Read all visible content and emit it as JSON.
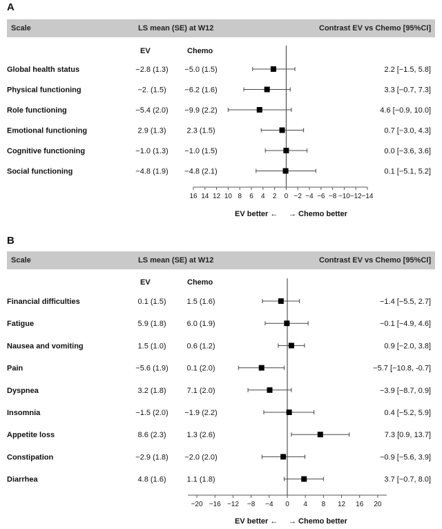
{
  "colors": {
    "header_bg": "#c9c9c9",
    "marker": "#000000",
    "axis": "#555555"
  },
  "chart_data": [
    {
      "type": "forest",
      "panel": "A",
      "header": {
        "scale": "Scale",
        "lsmean": "LS mean (SE) at W12",
        "contrast": "Contrast EV vs Chemo [95%CI]"
      },
      "col_ev": "EV",
      "col_chemo": "Chemo",
      "xlim": [
        16,
        -14
      ],
      "ticks": [
        16,
        14,
        12,
        10,
        8,
        6,
        4,
        2,
        0,
        -2,
        -4,
        -6,
        -8,
        -10,
        -12,
        -14
      ],
      "tick_labels": [
        "16",
        "14",
        "12",
        "10",
        "8",
        "6",
        "4",
        "2",
        "0",
        "−2",
        "−4",
        "−6",
        "−8",
        "−10",
        "−12",
        "−14"
      ],
      "left_label": "EV better ←",
      "right_label": "→ Chemo better",
      "rows": [
        {
          "name": "Global health status",
          "ev": "−2.8 (1.3)",
          "chemo": "−5.0 (1.5)",
          "contrast": "2.2 [−1.5, 5.8]",
          "est": 2.2,
          "lo": -1.5,
          "hi": 5.8
        },
        {
          "name": "Physical functioning",
          "ev": "−2. (1.5)",
          "chemo": "−6.2 (1.6)",
          "contrast": "3.3 [−0.7, 7.3]",
          "est": 3.3,
          "lo": -0.7,
          "hi": 7.3
        },
        {
          "name": "Role functioning",
          "ev": "−5.4 (2.0)",
          "chemo": "−9.9 (2.2)",
          "contrast": "4.6 [−0.9, 10.0]",
          "est": 4.6,
          "lo": -0.9,
          "hi": 10.0
        },
        {
          "name": "Emotional functioning",
          "ev": "2.9 (1.3)",
          "chemo": "2.3 (1.5)",
          "contrast": "0.7 [−3.0, 4.3]",
          "est": 0.7,
          "lo": -3.0,
          "hi": 4.3
        },
        {
          "name": "Cognitive functioning",
          "ev": "−1.0 (1.3)",
          "chemo": "−1.0 (1.5)",
          "contrast": "0.0 [−3.6, 3.6]",
          "est": 0.0,
          "lo": -3.6,
          "hi": 3.6
        },
        {
          "name": "Social functioning",
          "ev": "−4.8 (1.9)",
          "chemo": "−4.8 (2.1)",
          "contrast": "0.1 [−5.1, 5.2]",
          "est": 0.1,
          "lo": -5.1,
          "hi": 5.2
        }
      ]
    },
    {
      "type": "forest",
      "panel": "B",
      "header": {
        "scale": "Scale",
        "lsmean": "LS mean (SE) at W12",
        "contrast": "Contrast EV vs Chemo [95%CI]"
      },
      "col_ev": "EV",
      "col_chemo": "Chemo",
      "xlim": [
        -22,
        22
      ],
      "ticks": [
        -20,
        -16,
        -12,
        -8,
        -4,
        0,
        4,
        8,
        12,
        16,
        20
      ],
      "tick_labels": [
        "−20",
        "−16",
        "−12",
        "−8",
        "−4",
        "0",
        "4",
        "8",
        "12",
        "16",
        "20"
      ],
      "left_label": "EV better ←",
      "right_label": "→ Chemo better",
      "rows": [
        {
          "name": "Financial difficulties",
          "ev": "0.1 (1.5)",
          "chemo": "1.5 (1.6)",
          "contrast": "−1.4 [−5.5, 2.7]",
          "est": -1.4,
          "lo": -5.5,
          "hi": 2.7
        },
        {
          "name": "Fatigue",
          "ev": "5.9 (1.8)",
          "chemo": "6.0 (1.9)",
          "contrast": "−0.1 [−4.9, 4.6]",
          "est": -0.1,
          "lo": -4.9,
          "hi": 4.6
        },
        {
          "name": "Nausea and vomiting",
          "ev": "1.5 (1.0)",
          "chemo": "0.6 (1.2)",
          "contrast": "0.9 [−2.0, 3.8]",
          "est": 0.9,
          "lo": -2.0,
          "hi": 3.8
        },
        {
          "name": "Pain",
          "ev": "−5.6 (1.9)",
          "chemo": "0.1 (2.0)",
          "contrast": "−5.7 [−10.8, -0.7]",
          "est": -5.7,
          "lo": -10.8,
          "hi": -0.7
        },
        {
          "name": "Dyspnea",
          "ev": "3.2 (1.8)",
          "chemo": "7.1 (2.0)",
          "contrast": "−3.9 [−8.7, 0.9]",
          "est": -3.9,
          "lo": -8.7,
          "hi": 0.9
        },
        {
          "name": "Insomnia",
          "ev": "−1.5 (2.0)",
          "chemo": "−1.9 (2.2)",
          "contrast": "0.4 [−5.2, 5.9]",
          "est": 0.4,
          "lo": -5.2,
          "hi": 5.9
        },
        {
          "name": "Appetite loss",
          "ev": "8.6 (2.3)",
          "chemo": "1.3 (2.6)",
          "contrast": "7.3 [0.9, 13.7]",
          "est": 7.3,
          "lo": 0.9,
          "hi": 13.7
        },
        {
          "name": "Constipation",
          "ev": "−2.9 (1.8)",
          "chemo": "−2.0 (2.0)",
          "contrast": "−0.9 [−5.6, 3.9]",
          "est": -0.9,
          "lo": -5.6,
          "hi": 3.9
        },
        {
          "name": "Diarrhea",
          "ev": "4.8 (1.6)",
          "chemo": "1.1 (1.8)",
          "contrast": "3.7 [−0.7, 8.0]",
          "est": 3.7,
          "lo": -0.7,
          "hi": 8.0
        }
      ]
    }
  ]
}
